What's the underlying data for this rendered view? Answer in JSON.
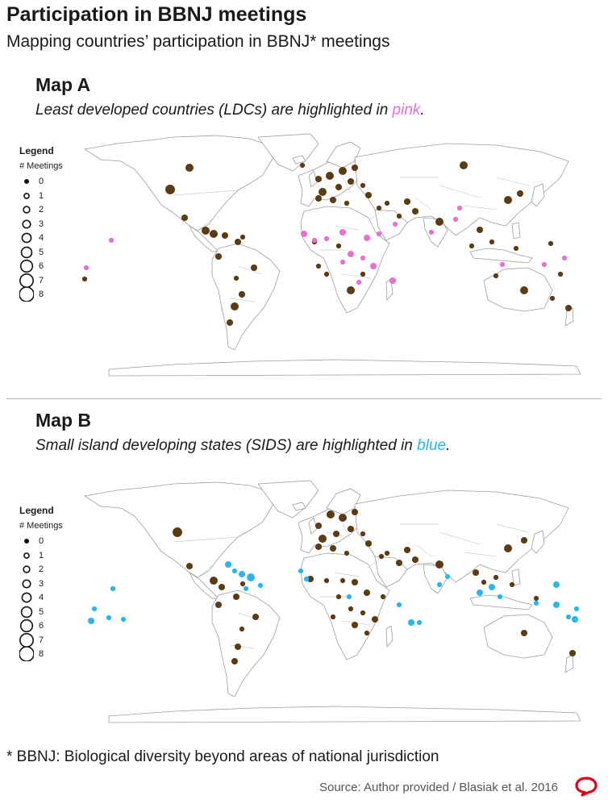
{
  "title": "Participation in BBNJ meetings",
  "subtitle": "Mapping countries’ participation in BBNJ* meetings",
  "colors": {
    "participant": "#5c3a12",
    "ldc": "#e96fd2",
    "sids": "#29b6ef",
    "land_stroke": "#9c9c9c",
    "logo": "#e3001b"
  },
  "legend": {
    "title": "Legend",
    "subtitle": "# Meetings",
    "levels": [
      "0",
      "1",
      "2",
      "3",
      "4",
      "5",
      "6",
      "7",
      "8"
    ]
  },
  "maps": [
    {
      "heading": "Map A",
      "desc_prefix": "Least developed countries (LDCs) are highlighted in ",
      "desc_highlight": "pink",
      "desc_suffix": "."
    },
    {
      "heading": "Map B",
      "desc_prefix": "Small island developing states (SIDS) are highlighted in ",
      "desc_highlight": "blue",
      "desc_suffix": "."
    }
  ],
  "footnote": "* BBNJ: Biological diversity beyond areas of national jurisdiction",
  "source": "Source: Author provided / Blasiak et al. 2016",
  "logo_icon": "speech-bubble-logo-icon"
}
